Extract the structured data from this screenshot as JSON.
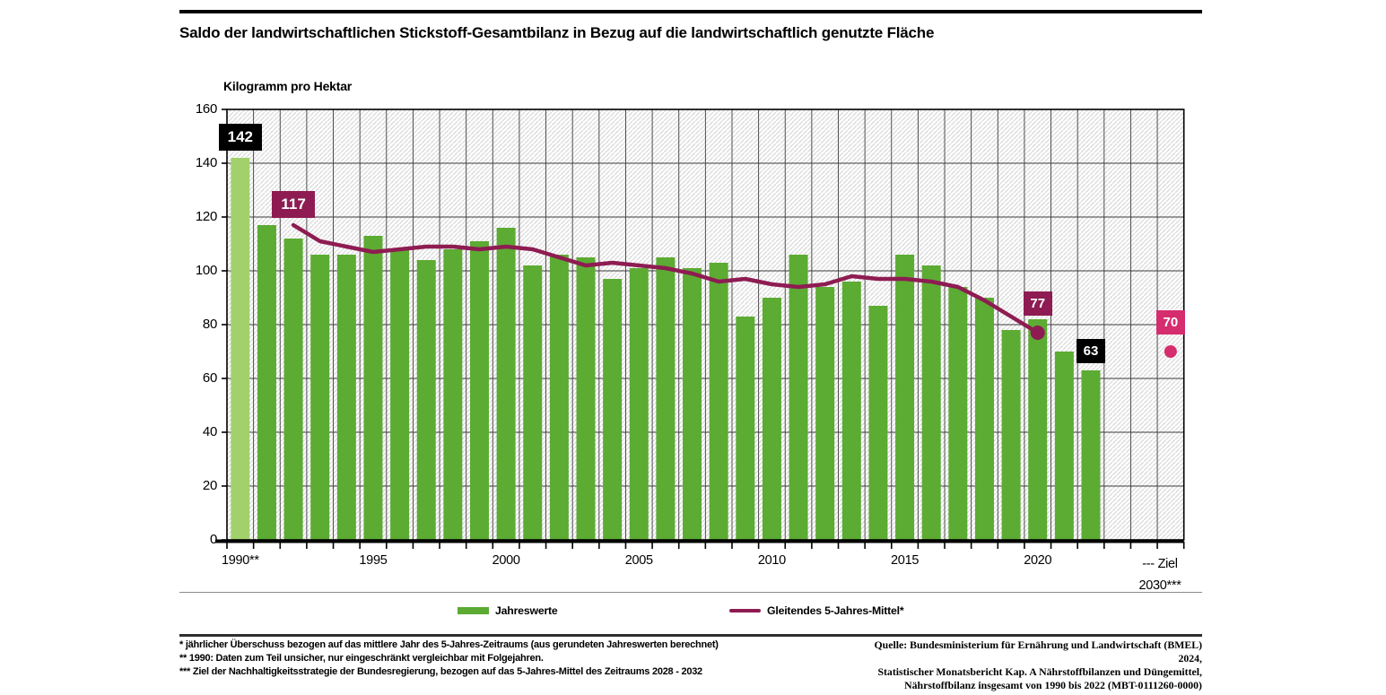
{
  "header": {
    "title": "Saldo der landwirtschaftlichen Stickstoff-Gesamtbilanz in Bezug auf die landwirtschaftlich genutzte Fläche"
  },
  "chart": {
    "unit_label": "Kilogramm pro Hektar",
    "y_ticks": [
      0,
      20,
      40,
      60,
      80,
      100,
      120,
      140,
      160
    ],
    "x_ticks": [
      {
        "year": 1990,
        "label": "1990**"
      },
      {
        "year": 1995,
        "label": "1995"
      },
      {
        "year": 2000,
        "label": "2000"
      },
      {
        "year": 2005,
        "label": "2005"
      },
      {
        "year": 2010,
        "label": "2010"
      },
      {
        "year": 2015,
        "label": "2015"
      },
      {
        "year": 2020,
        "label": "2020"
      }
    ],
    "ziel_line1": "--- Ziel",
    "ziel_line2": "2030***"
  },
  "chart_data": {
    "type": "bar",
    "title": "Saldo der landwirtschaftlichen Stickstoff-Gesamtbilanz in Bezug auf die landwirtschaftlich genutzte Fläche",
    "ylabel": "Kilogramm pro Hektar",
    "ylim": [
      0,
      160
    ],
    "y_step": 20,
    "grid": "on",
    "years": [
      1990,
      1991,
      1992,
      1993,
      1994,
      1995,
      1996,
      1997,
      1998,
      1999,
      2000,
      2001,
      2002,
      2003,
      2004,
      2005,
      2006,
      2007,
      2008,
      2009,
      2010,
      2011,
      2012,
      2013,
      2014,
      2015,
      2016,
      2017,
      2018,
      2019,
      2020,
      2021,
      2022
    ],
    "series": [
      {
        "name": "Jahreswerte",
        "type": "bar",
        "values": [
          142,
          117,
          112,
          106,
          106,
          113,
          108,
          104,
          108,
          111,
          116,
          102,
          106,
          105,
          97,
          101,
          105,
          101,
          103,
          83,
          90,
          106,
          94,
          96,
          87,
          106,
          102,
          94,
          90,
          78,
          82,
          70,
          63
        ]
      },
      {
        "name": "Gleitendes 5-Jahres-Mittel*",
        "type": "line",
        "x": [
          1992,
          1993,
          1994,
          1995,
          1996,
          1997,
          1998,
          1999,
          2000,
          2001,
          2002,
          2003,
          2004,
          2005,
          2006,
          2007,
          2008,
          2009,
          2010,
          2011,
          2012,
          2013,
          2014,
          2015,
          2016,
          2017,
          2018,
          2019,
          2020
        ],
        "values": [
          117,
          111,
          109,
          107,
          108,
          109,
          109,
          108,
          109,
          108,
          105,
          102,
          103,
          102,
          101,
          99,
          96,
          97,
          95,
          94,
          95,
          98,
          97,
          97,
          96,
          94,
          89,
          83,
          77
        ]
      }
    ],
    "target": {
      "label": "Ziel 2030***",
      "value": 70
    },
    "annotations": [
      {
        "label": "142",
        "year": 1990,
        "value": 142,
        "style": "black",
        "size": "big"
      },
      {
        "label": "117",
        "year": 1992,
        "value": 117,
        "style": "line",
        "size": "big"
      },
      {
        "label": "77",
        "year": 2020,
        "value": 77,
        "style": "line",
        "size": "small",
        "dot": true
      },
      {
        "label": "63",
        "year": 2022,
        "value": 63,
        "style": "black",
        "size": "small"
      },
      {
        "label": "70",
        "year": "ziel",
        "value": 70,
        "style": "target",
        "size": "small",
        "dot": true
      }
    ],
    "colors": {
      "bar": "#5cab33",
      "bar_1990": "#a2d16b",
      "line": "#8e1c52",
      "target": "#d62d6e",
      "badge_black": "#000000",
      "grid": "#3d3d3d",
      "hatch": "#d9d9d9"
    }
  },
  "legend": {
    "items": [
      {
        "label": "Jahreswerte"
      },
      {
        "label": "Gleitendes 5-Jahres-Mittel*"
      }
    ]
  },
  "footnotes": {
    "line1": "* jährlicher Überschuss bezogen auf das mittlere Jahr des 5-Jahres-Zeitraums (aus gerundeten Jahreswerten berechnet)",
    "line2": "** 1990: Daten zum Teil unsicher, nur eingeschränkt vergleichbar mit Folgejahren.",
    "line3": "*** Ziel der Nachhaltigkeitsstrategie der Bundesregierung, bezogen auf das 5-Jahres-Mittel des Zeitraums 2028 - 2032"
  },
  "source": {
    "line1": "Quelle: Bundesministerium für Ernährung und Landwirtschaft (BMEL) 2024,",
    "line2": "Statistischer Monatsbericht Kap. A Nährstoffbilanzen und Düngemittel,",
    "line3": "Nährstoffbilanz insgesamt von 1990 bis 2022 (MBT-0111260-0000)"
  }
}
